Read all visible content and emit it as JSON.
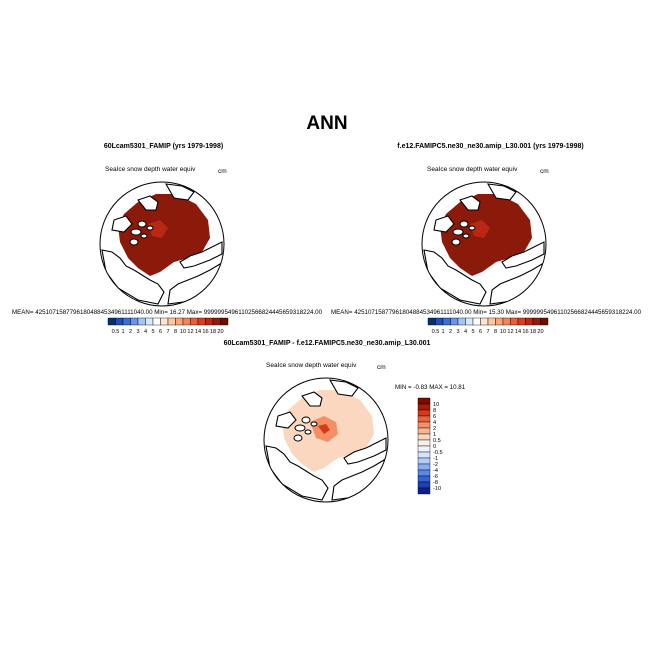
{
  "page": {
    "title": "ANN"
  },
  "panels": [
    {
      "title": "60Lcam5301_FAMIP (yrs 1979-1998)",
      "variable": "SeaIce snow depth water equiv",
      "units": "cm",
      "stats": "MEAN= 42510715877961804884534961111040.00  Min=   16.27  Max=  99999954961102566824445659318224.00"
    },
    {
      "title": "f.e12.FAMIPC5.ne30_ne30.amip_L30.001 (yrs 1979-1998)",
      "variable": "SeaIce snow depth water equiv",
      "units": "cm",
      "stats": "MEAN= 42510715877961804884534961111040.00  Min=   15.30  Max=  99999954961102566824445659318224.00"
    },
    {
      "title": "60Lcam5301_FAMIP - f.e12.FAMIPC5.ne30_ne30.amip_L30.001",
      "variable": "SeaIce snow depth water equiv",
      "units": "cm",
      "stats": "MIN =  -0.83  MAX =  10.81"
    }
  ],
  "chart_data": [
    {
      "type": "heatmap",
      "projection": "polar-stereographic-north",
      "title": "60Lcam5301_FAMIP (yrs 1979-1998)",
      "variable": "SeaIce snow depth water equiv",
      "units": "cm",
      "mean": "42510715877961804884534961111040.00",
      "min": 16.27,
      "max": "99999954961102566824445659318224.00",
      "colorbar": {
        "orientation": "horizontal",
        "levels": [
          "0.5",
          "1",
          "2",
          "3",
          "4",
          "5",
          "6",
          "7",
          "8",
          "10",
          "12",
          "14",
          "16",
          "18",
          "20"
        ],
        "colors": [
          "#08306b",
          "#1f4fb0",
          "#3b6fd8",
          "#6a95e8",
          "#a6c4f2",
          "#dbe8fa",
          "#ffffff",
          "#fde4cf",
          "#fbc8a5",
          "#f8a57c",
          "#f3845a",
          "#e8603c",
          "#d63f25",
          "#b82812",
          "#951a08",
          "#6e0e02"
        ]
      },
      "dominant_color": "#8b1a0b"
    },
    {
      "type": "heatmap",
      "projection": "polar-stereographic-north",
      "title": "f.e12.FAMIPC5.ne30_ne30.amip_L30.001 (yrs 1979-1998)",
      "variable": "SeaIce snow depth water equiv",
      "units": "cm",
      "mean": "42510715877961804884534961111040.00",
      "min": 15.3,
      "max": "99999954961102566824445659318224.00",
      "colorbar": {
        "orientation": "horizontal",
        "levels": [
          "0.5",
          "1",
          "2",
          "3",
          "4",
          "5",
          "6",
          "7",
          "8",
          "10",
          "12",
          "14",
          "16",
          "18",
          "20"
        ],
        "colors": [
          "#08306b",
          "#1f4fb0",
          "#3b6fd8",
          "#6a95e8",
          "#a6c4f2",
          "#dbe8fa",
          "#ffffff",
          "#fde4cf",
          "#fbc8a5",
          "#f8a57c",
          "#f3845a",
          "#e8603c",
          "#d63f25",
          "#b82812",
          "#951a08",
          "#6e0e02"
        ]
      },
      "dominant_color": "#8b1a0b"
    },
    {
      "type": "heatmap",
      "projection": "polar-stereographic-north",
      "title": "60Lcam5301_FAMIP - f.e12.FAMIPC5.ne30_ne30.amip_L30.001",
      "variable": "SeaIce snow depth water equiv",
      "units": "cm",
      "min": -0.83,
      "max": 10.81,
      "colorbar": {
        "orientation": "vertical",
        "levels": [
          "10",
          "8",
          "6",
          "4",
          "2",
          "1",
          "0.5",
          "0",
          "-0.5",
          "-1",
          "-2",
          "-4",
          "-6",
          "-8",
          "-10"
        ],
        "colors": [
          "#7a0b00",
          "#a81c06",
          "#d33a1c",
          "#e8663f",
          "#f39067",
          "#f7b592",
          "#fbd7bf",
          "#fdeee3",
          "#eef4fd",
          "#d4e4fb",
          "#b3cdf6",
          "#88aef0",
          "#5a88e3",
          "#3561cf",
          "#1c3fb3",
          "#0b1f8f"
        ]
      },
      "dominant_color": "#fbd7bf"
    }
  ]
}
